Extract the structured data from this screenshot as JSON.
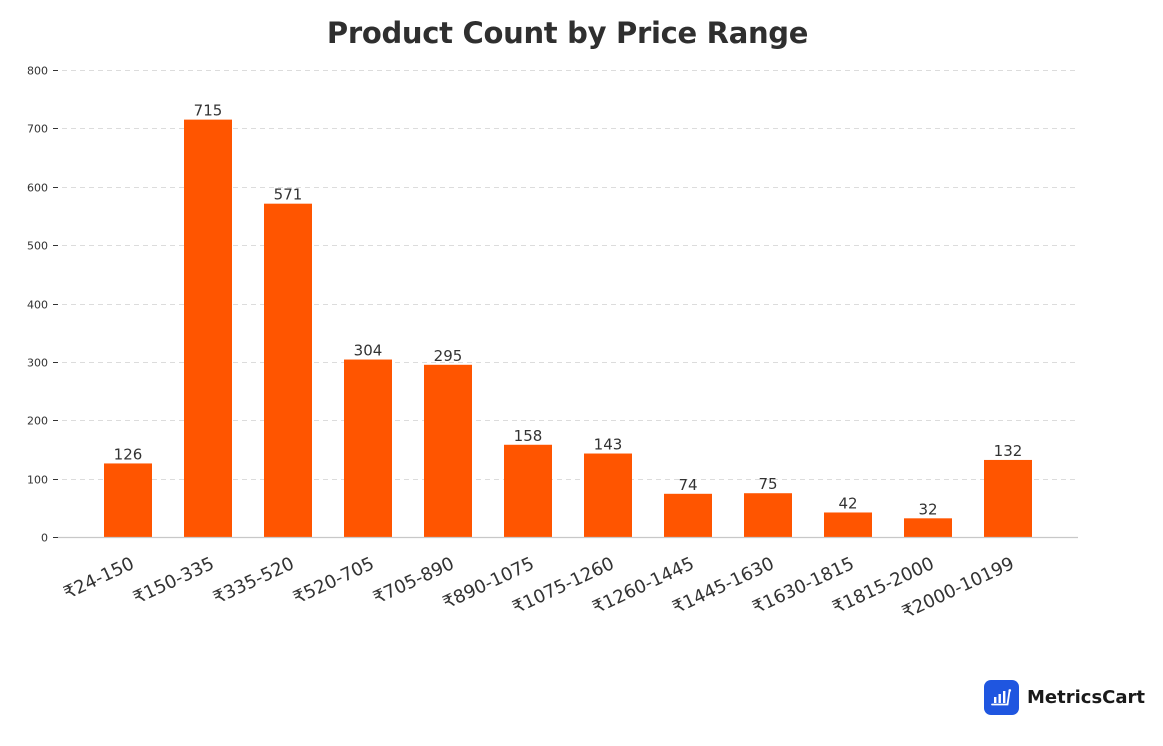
{
  "chart_data": {
    "type": "bar",
    "title": "Product Count by Price Range",
    "xlabel": "",
    "ylabel": "",
    "categories": [
      "₹24-150",
      "₹150-335",
      "₹335-520",
      "₹520-705",
      "₹705-890",
      "₹890-1075",
      "₹1075-1260",
      "₹1260-1445",
      "₹1445-1630",
      "₹1630-1815",
      "₹1815-2000",
      "₹2000-10199"
    ],
    "values": [
      126,
      715,
      571,
      304,
      295,
      158,
      143,
      74,
      75,
      42,
      32,
      132
    ],
    "ylim": [
      0,
      800
    ],
    "yticks": [
      0,
      100,
      200,
      300,
      400,
      500,
      600,
      700,
      800
    ],
    "grid": true,
    "grid_style": "dashed horizontal",
    "legend": null,
    "bar_color": "#ff5500",
    "data_labels": true
  },
  "branding": {
    "logo_text": "MetricsCart",
    "logo_color": "#1f56e0"
  }
}
